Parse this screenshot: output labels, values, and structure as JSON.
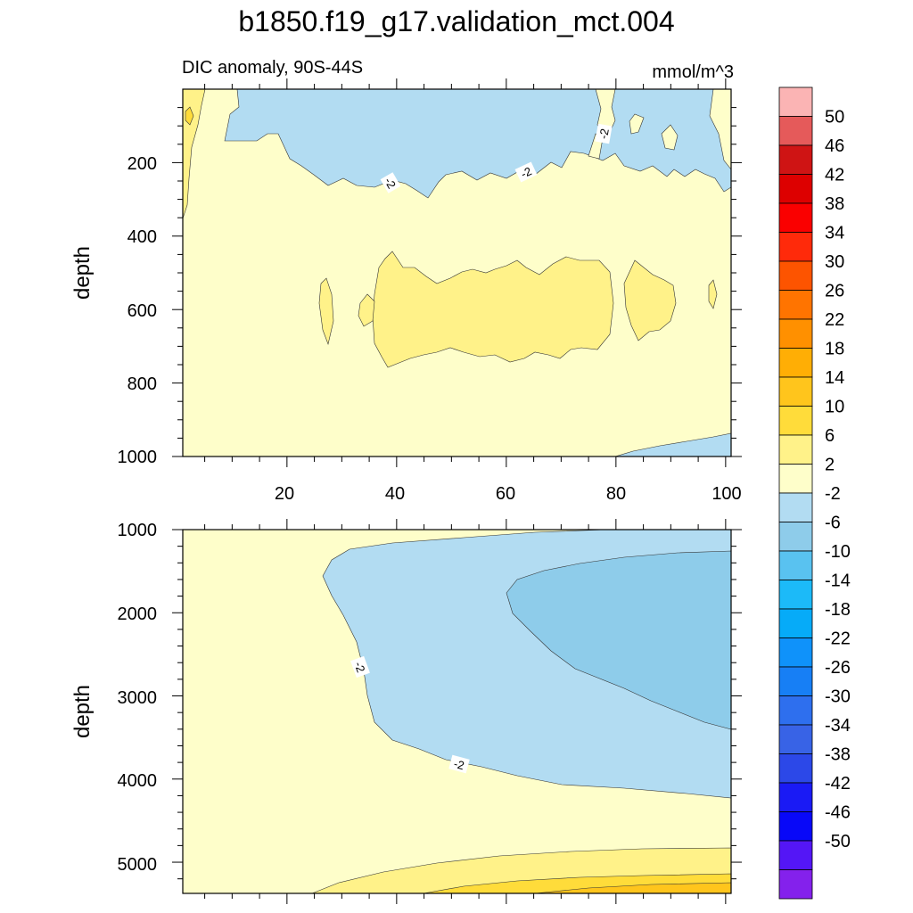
{
  "title": "b1850.f19_g17.validation_mct.004",
  "chart_data": [
    {
      "type": "contour",
      "panel": "upper",
      "left_string": "DIC anomaly, 90S-44S",
      "right_string": "mmol/m^3",
      "ylabel": "depth",
      "xlim": [
        1,
        101
      ],
      "ylim": [
        0,
        1000
      ],
      "x_ticks": [
        20,
        40,
        60,
        80,
        100
      ],
      "x_tick_labels": [
        "20",
        "40",
        "60",
        "80",
        "100"
      ],
      "y_ticks": [
        200,
        400,
        600,
        800,
        1000
      ],
      "y_tick_labels": [
        "200",
        "400",
        "600",
        "800",
        "1000"
      ],
      "contour_labels": [
        "-2",
        "-2",
        "-2"
      ]
    },
    {
      "type": "contour",
      "panel": "lower",
      "ylabel": "depth",
      "xlim": [
        1,
        101
      ],
      "ylim": [
        1000,
        5375
      ],
      "y_ticks": [
        1000,
        2000,
        3000,
        4000,
        5000
      ],
      "y_tick_labels": [
        "1000",
        "2000",
        "3000",
        "4000",
        "5000"
      ],
      "contour_labels": [
        "-2",
        "-2"
      ]
    }
  ],
  "colorbar": {
    "levels": [
      "50",
      "46",
      "42",
      "38",
      "34",
      "30",
      "26",
      "22",
      "18",
      "14",
      "10",
      "6",
      "2",
      "-2",
      "-6",
      "-10",
      "-14",
      "-18",
      "-22",
      "-26",
      "-30",
      "-34",
      "-38",
      "-42",
      "-46",
      "-50"
    ],
    "colors": [
      "#FBB4B4",
      "#E55A5A",
      "#CF1414",
      "#DD0000",
      "#FA0000",
      "#FF2A0A",
      "#FD5400",
      "#FF7400",
      "#FF9000",
      "#FFAE05",
      "#FFC51C",
      "#FFDC3A",
      "#FFF289",
      "#FEFECA",
      "#B2DCF2",
      "#8ECCEA",
      "#59C2F0",
      "#1CBAF8",
      "#06ABF8",
      "#0F92FA",
      "#177FF5",
      "#2E6FEE",
      "#3863E6",
      "#2C48E8",
      "#1A1AF5",
      "#0808F8",
      "#5416F6",
      "#8421EC"
    ]
  }
}
